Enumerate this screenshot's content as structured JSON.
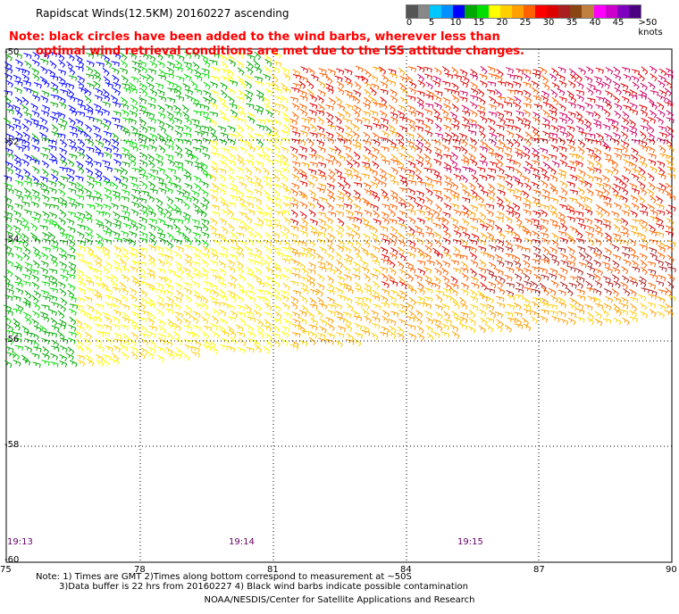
{
  "header": {
    "title": "Rapidscat Winds(12.5KM) 20160227 ascending",
    "note_line1": "Note: black circles have been added to the wind barbs, wherever less than",
    "note_line2": "optimal wind retrieval conditions are met due to the ISS attitude changes."
  },
  "legend": {
    "labels": [
      "0",
      "5",
      "10",
      "15",
      "20",
      "25",
      "30",
      "35",
      "40",
      "45",
      ">50 knots"
    ],
    "colors": [
      "#555555",
      "#888888",
      "#00c8ff",
      "#0090ff",
      "#0000ff",
      "#00aa00",
      "#00dd00",
      "#ffff00",
      "#ffd000",
      "#ffa000",
      "#ff6000",
      "#ff0000",
      "#dd0000",
      "#aa2020",
      "#8b4513",
      "#c08040",
      "#ff00ff",
      "#cc00cc",
      "#8000c0",
      "#4b0082"
    ]
  },
  "map": {
    "lon_labels": [
      "75",
      "78",
      "81",
      "84",
      "87",
      "90"
    ],
    "lat_labels": [
      "-50",
      "-52",
      "-54",
      "-56",
      "-58",
      "-60"
    ],
    "times": [
      "19:13",
      "19:14",
      "19:15"
    ],
    "swath_colors": {
      "blue": "#0000ff",
      "green": "#00aa00",
      "lightgreen": "#00dd00",
      "yellow": "#ffff00",
      "gold": "#ffd000",
      "orange": "#ffa000",
      "darkorange": "#ff6000",
      "red": "#dd0000",
      "brown": "#aa2020",
      "magenta": "#cc0066"
    }
  },
  "footer": {
    "note1": "Note: 1) Times are GMT 2)Times along bottom correspond to measurement at ~50S",
    "note2": "3)Data buffer is 22 hrs from 20160227 4) Black wind barbs indicate possible contamination",
    "credit": "NOAA/NESDIS/Center for Satellite Applications and Research"
  }
}
